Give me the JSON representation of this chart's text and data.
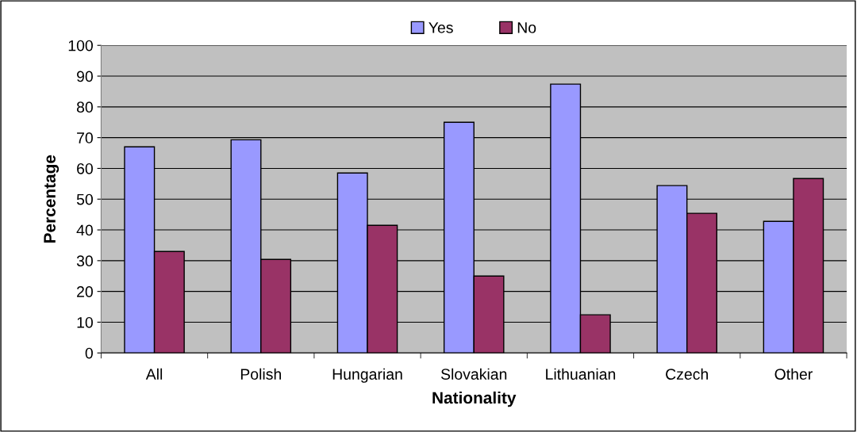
{
  "chart_data": {
    "type": "bar",
    "xlabel": "Nationality",
    "ylabel": "Percentage",
    "categories": [
      "All",
      "Polish",
      "Hungarian",
      "Slovakian",
      "Lithuanian",
      "Czech",
      "Other"
    ],
    "series": [
      {
        "name": "Yes",
        "color": "#9999ff",
        "values": [
          67,
          69.3,
          58.5,
          75,
          87.4,
          54.4,
          42.8
        ]
      },
      {
        "name": "No",
        "color": "#993366",
        "values": [
          33,
          30.4,
          41.5,
          25,
          12.4,
          45.4,
          56.7
        ]
      }
    ],
    "ylim": [
      0,
      100
    ],
    "yticks": [
      0,
      10,
      20,
      30,
      40,
      50,
      60,
      70,
      80,
      90,
      100
    ],
    "grid": "y",
    "legend": "top"
  }
}
